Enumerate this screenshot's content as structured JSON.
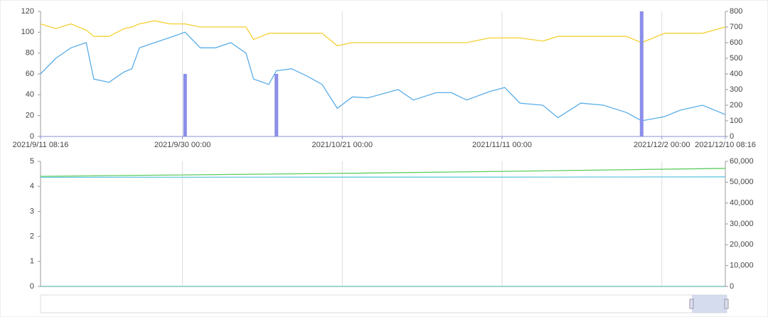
{
  "chart_data": [
    {
      "type": "line",
      "x": [
        "2021/9/11 08:16",
        "2021/9/13 08:16",
        "2021/9/15 08:16",
        "2021/9/17 08:16",
        "2021/9/18 08:16",
        "2021/9/20 08:16",
        "2021/9/22 08:16",
        "2021/9/23 08:16",
        "2021/9/24 08:16",
        "2021/9/26 08:16",
        "2021/9/28 08:16",
        "2021/9/30 08:16",
        "2021/10/2 08:16",
        "2021/10/4 08:16",
        "2021/10/6 08:16",
        "2021/10/8 08:16",
        "2021/10/9 08:16",
        "2021/10/11 08:16",
        "2021/10/12 08:16",
        "2021/10/14 08:16",
        "2021/10/16 08:16",
        "2021/10/18 08:16",
        "2021/10/20 08:16",
        "2021/10/22 08:16",
        "2021/10/24 08:16",
        "2021/10/28 08:16",
        "2021/10/30 08:16",
        "2021/11/2 08:16",
        "2021/11/4 08:16",
        "2021/11/6 08:16",
        "2021/11/9 08:16",
        "2021/11/11 08:16",
        "2021/11/13 08:16",
        "2021/11/16 08:16",
        "2021/11/18 08:16",
        "2021/11/21 08:16",
        "2021/11/24 08:16",
        "2021/11/27 08:16",
        "2021/11/29 08:16",
        "2021/12/2 08:16",
        "2021/12/4 08:16",
        "2021/12/7 08:16",
        "2021/12/10 08:16"
      ],
      "xlim": [
        "2021/9/11 08:16",
        "2021/12/10 08:16"
      ],
      "xticks": [
        "2021/9/11 08:16",
        "2021/9/30 00:00",
        "2021/10/21 00:00",
        "2021/11/11 00:00",
        "2021/12/2 00:00",
        "2021/12/10 08:16"
      ],
      "ylim": [
        0,
        120
      ],
      "yticks": [
        0,
        20,
        40,
        60,
        80,
        100,
        120
      ],
      "y2lim": [
        0,
        800
      ],
      "y2ticks": [
        0,
        100,
        200,
        300,
        400,
        500,
        600,
        700,
        800
      ],
      "series": [
        {
          "type": "line",
          "color": "#5aade8",
          "values": [
            60,
            75,
            85,
            90,
            55,
            52,
            62,
            65,
            85,
            90,
            95,
            100,
            85,
            85,
            90,
            80,
            55,
            50,
            63,
            65,
            58,
            50,
            27,
            38,
            37,
            45,
            35,
            42,
            42,
            35,
            43,
            47,
            32,
            30,
            18,
            32,
            30,
            23,
            15,
            19,
            25,
            30,
            21
          ]
        },
        {
          "type": "line",
          "axis": "y2",
          "color": "#f5d033",
          "values": [
            720,
            690,
            720,
            680,
            640,
            640,
            690,
            700,
            720,
            740,
            720,
            720,
            700,
            700,
            700,
            700,
            620,
            660,
            660,
            660,
            660,
            660,
            580,
            600,
            600,
            600,
            600,
            600,
            600,
            600,
            630,
            630,
            630,
            610,
            640,
            640,
            640,
            640,
            600,
            660,
            660,
            660,
            700
          ]
        },
        {
          "type": "bar",
          "axis": "y2",
          "color": "#8b8fe8",
          "values": [
            null,
            null,
            null,
            null,
            null,
            null,
            null,
            null,
            null,
            null,
            null,
            400,
            null,
            null,
            null,
            null,
            null,
            null,
            400,
            null,
            null,
            null,
            null,
            null,
            null,
            null,
            null,
            null,
            null,
            null,
            null,
            null,
            null,
            null,
            null,
            null,
            null,
            null,
            800,
            null,
            null,
            null,
            null
          ]
        }
      ]
    },
    {
      "type": "line",
      "x": [
        "2021/9/11 08:16",
        "2021/10/21 00:00",
        "2021/11/11 00:00",
        "2021/12/10 08:16"
      ],
      "xlim": [
        "2021/9/11 08:16",
        "2021/12/10 08:16"
      ],
      "xticks": [
        "2021/9/30 00:00",
        "2021/10/21 00:00",
        "2021/11/11 00:00",
        "2021/12/2 00:00"
      ],
      "ylim": [
        0,
        5
      ],
      "yticks": [
        0,
        1,
        2,
        3,
        4,
        5
      ],
      "y2lim": [
        0,
        60000
      ],
      "y2ticks": [
        0,
        {
          "value": 10000,
          "label": "10,000"
        },
        {
          "value": 20000,
          "label": "20,000"
        },
        {
          "value": 30000,
          "label": "30,000"
        },
        {
          "value": 40000,
          "label": "40,000"
        },
        {
          "value": 50000,
          "label": "50,000"
        },
        {
          "value": 60000,
          "label": "60,000"
        }
      ],
      "series": [
        {
          "type": "line",
          "color": "#5ccc5c",
          "values": [
            4.4,
            4.52,
            4.6,
            4.72
          ]
        },
        {
          "type": "line",
          "color": "#64c8e0",
          "values": [
            4.36,
            4.37,
            4.37,
            4.38
          ]
        }
      ]
    }
  ]
}
